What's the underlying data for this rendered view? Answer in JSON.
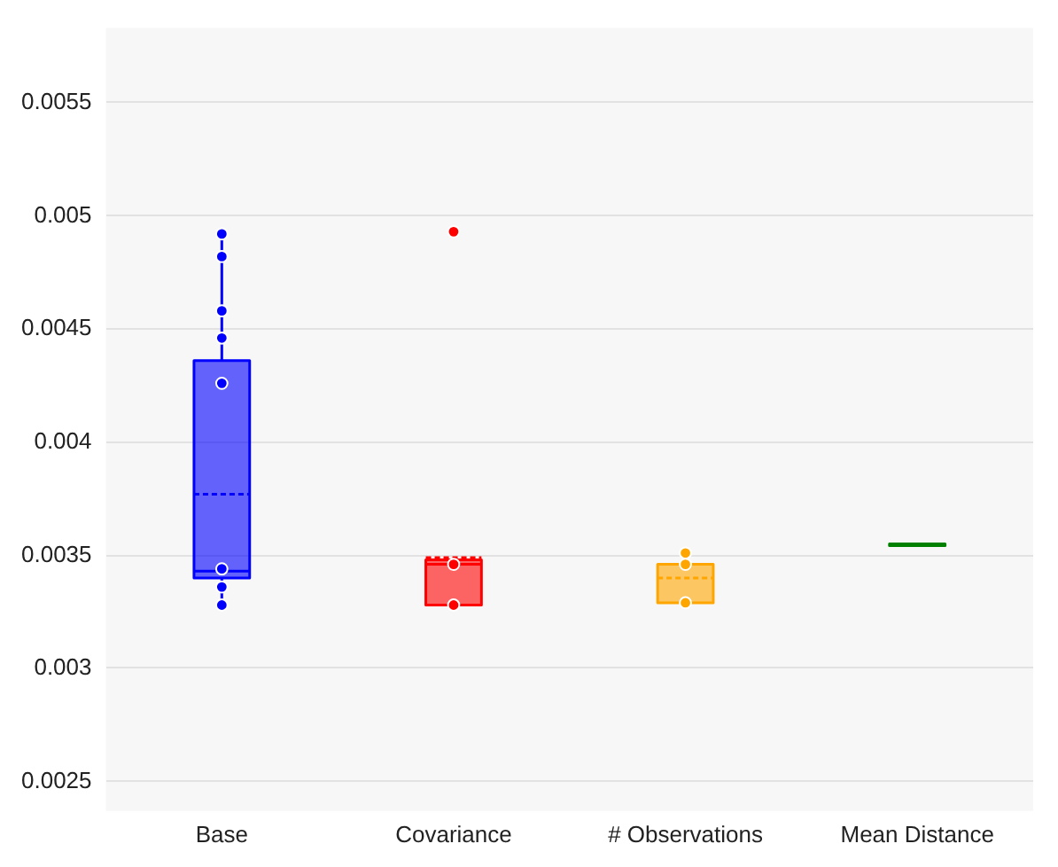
{
  "chart_data": {
    "type": "box",
    "categories": [
      "Base",
      "Covariance",
      "# Observations",
      "Mean Distance"
    ],
    "ylim": [
      0.00237,
      0.00583
    ],
    "yticks": [
      0.0025,
      0.003,
      0.0035,
      0.004,
      0.0045,
      0.005,
      0.0055
    ],
    "grid": "y",
    "legend": false,
    "series": [
      {
        "type": "box",
        "colors": [
          "#0000ff",
          "#ff0000",
          "#ffa500",
          "#008000"
        ],
        "boxes": [
          {
            "low": 0.00328,
            "q1": 0.0034,
            "median": 0.00343,
            "q3": 0.00436,
            "high": 0.00492,
            "mean": 0.00377
          },
          {
            "low": 0.00328,
            "q1": 0.00328,
            "median": 0.00346,
            "q3": 0.00348,
            "high": 0.00348,
            "mean": 0.00349
          },
          {
            "low": 0.00329,
            "q1": 0.00329,
            "median": 0.00346,
            "q3": 0.00346,
            "high": 0.00351,
            "mean": 0.0034
          },
          {
            "low": 0.00355,
            "q1": 0.00355,
            "median": 0.00355,
            "q3": 0.00355,
            "high": 0.00355,
            "mean": 0.00355
          }
        ]
      },
      {
        "type": "scatter",
        "x": [
          "Base",
          "Base",
          "Base",
          "Base",
          "Base",
          "Base",
          "Base",
          "Base",
          "Base",
          "Covariance",
          "Covariance",
          "Covariance",
          "# Observations",
          "# Observations",
          "# Observations"
        ],
        "values": [
          0.00492,
          0.00482,
          0.00458,
          0.00446,
          0.00426,
          null,
          0.00344,
          0.00336,
          0.00328,
          0.00493,
          0.00346,
          0.00328,
          0.00351,
          0.00346,
          0.00329
        ],
        "colors": [
          "#0000ff",
          "#0000ff",
          "#0000ff",
          "#0000ff",
          "#0000ff",
          "#0000ff",
          "#0000ff",
          "#0000ff",
          "#0000ff",
          "#ff0000",
          "#ff0000",
          "#ff0000",
          "#ffa500",
          "#ffa500",
          "#ffa500"
        ]
      }
    ]
  }
}
